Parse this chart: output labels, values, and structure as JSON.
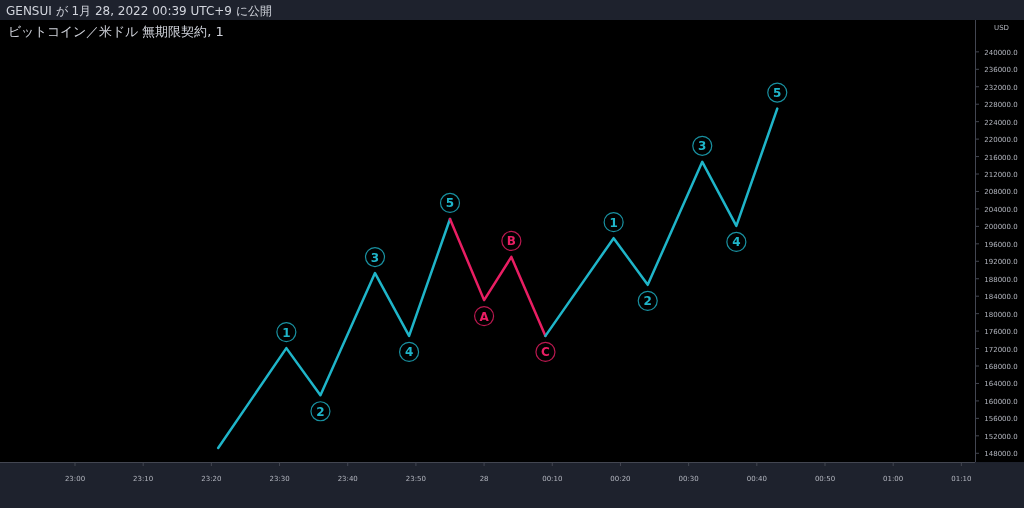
{
  "chart_data": {
    "type": "line",
    "title": "ビットコイン／米ドル 無期限契約, 1",
    "ylabel": "USD",
    "xlim": [
      "2022-01-27T22:49",
      "2022-01-28T01:12"
    ],
    "ylim": [
      146000,
      247300
    ],
    "xticks": [
      {
        "value": "2022-01-27T23:00",
        "label": "23:00"
      },
      {
        "value": "2022-01-27T23:10",
        "label": "23:10"
      },
      {
        "value": "2022-01-27T23:20",
        "label": "23:20"
      },
      {
        "value": "2022-01-27T23:30",
        "label": "23:30"
      },
      {
        "value": "2022-01-27T23:40",
        "label": "23:40"
      },
      {
        "value": "2022-01-27T23:50",
        "label": "23:50"
      },
      {
        "value": "2022-01-28T00:00",
        "label": "28"
      },
      {
        "value": "2022-01-28T00:10",
        "label": "00:10"
      },
      {
        "value": "2022-01-28T00:20",
        "label": "00:20"
      },
      {
        "value": "2022-01-28T00:30",
        "label": "00:30"
      },
      {
        "value": "2022-01-28T00:40",
        "label": "00:40"
      },
      {
        "value": "2022-01-28T00:50",
        "label": "00:50"
      },
      {
        "value": "2022-01-28T01:00",
        "label": "01:00"
      },
      {
        "value": "2022-01-28T01:10",
        "label": "01:10"
      }
    ],
    "yticks": [
      {
        "value": 148000,
        "label": "148000.0"
      },
      {
        "value": 152000,
        "label": "152000.0"
      },
      {
        "value": 156000,
        "label": "156000.0"
      },
      {
        "value": 160000,
        "label": "160000.0"
      },
      {
        "value": 164000,
        "label": "164000.0"
      },
      {
        "value": 168000,
        "label": "168000.0"
      },
      {
        "value": 172000,
        "label": "172000.0"
      },
      {
        "value": 176000,
        "label": "176000.0"
      },
      {
        "value": 180000,
        "label": "180000.0"
      },
      {
        "value": 184000,
        "label": "184000.0"
      },
      {
        "value": 188000,
        "label": "188000.0"
      },
      {
        "value": 192000,
        "label": "192000.0"
      },
      {
        "value": 196000,
        "label": "196000.0"
      },
      {
        "value": 200000,
        "label": "200000.0"
      },
      {
        "value": 204000,
        "label": "204000.0"
      },
      {
        "value": 208000,
        "label": "208000.0"
      },
      {
        "value": 212000,
        "label": "212000.0"
      },
      {
        "value": 216000,
        "label": "216000.0"
      },
      {
        "value": 220000,
        "label": "220000.0"
      },
      {
        "value": 224000,
        "label": "224000.0"
      },
      {
        "value": 228000,
        "label": "228000.0"
      },
      {
        "value": 232000,
        "label": "232000.0"
      },
      {
        "value": 236000,
        "label": "236000.0"
      },
      {
        "value": 240000,
        "label": "240000.0"
      }
    ],
    "series": [
      {
        "color": "#1fb5c9",
        "x": [
          "2022-01-27T23:21",
          "2022-01-27T23:31",
          "2022-01-27T23:36",
          "2022-01-27T23:44",
          "2022-01-27T23:49",
          "2022-01-27T23:55"
        ],
        "values": [
          149200,
          172100,
          161300,
          189300,
          174900,
          201700
        ]
      },
      {
        "color": "#e91e63",
        "x": [
          "2022-01-27T23:55",
          "2022-01-28T00:00",
          "2022-01-28T00:04",
          "2022-01-28T00:09"
        ],
        "values": [
          201700,
          183100,
          193000,
          174900
        ]
      },
      {
        "color": "#1fb5c9",
        "x": [
          "2022-01-28T00:09",
          "2022-01-28T00:19",
          "2022-01-28T00:24",
          "2022-01-28T00:32",
          "2022-01-28T00:37",
          "2022-01-28T00:43"
        ],
        "values": [
          174900,
          197300,
          186600,
          214800,
          200100,
          227000
        ]
      }
    ],
    "annotations": [
      "GENSUI が 1月 28, 2022 00:39 UTC+9 に公開",
      {
        "text": "1",
        "x": "2022-01-27T23:31",
        "y": 172100
      },
      {
        "text": "2",
        "x": "2022-01-27T23:36",
        "y": 161300
      },
      {
        "text": "3",
        "x": "2022-01-27T23:44",
        "y": 189300
      },
      {
        "text": "4",
        "x": "2022-01-27T23:49",
        "y": 174900
      },
      {
        "text": "5",
        "x": "2022-01-27T23:55",
        "y": 201700
      },
      {
        "text": "A",
        "x": "2022-01-28T00:00",
        "y": 183100
      },
      {
        "text": "B",
        "x": "2022-01-28T00:04",
        "y": 193000
      },
      {
        "text": "C",
        "x": "2022-01-28T00:09",
        "y": 174900
      },
      {
        "text": "1",
        "x": "2022-01-28T00:19",
        "y": 197300
      },
      {
        "text": "2",
        "x": "2022-01-28T00:24",
        "y": 186600
      },
      {
        "text": "3",
        "x": "2022-01-28T00:32",
        "y": 214800
      },
      {
        "text": "4",
        "x": "2022-01-28T00:37",
        "y": 200100
      },
      {
        "text": "5",
        "x": "2022-01-28T00:43",
        "y": 227000
      }
    ]
  }
}
